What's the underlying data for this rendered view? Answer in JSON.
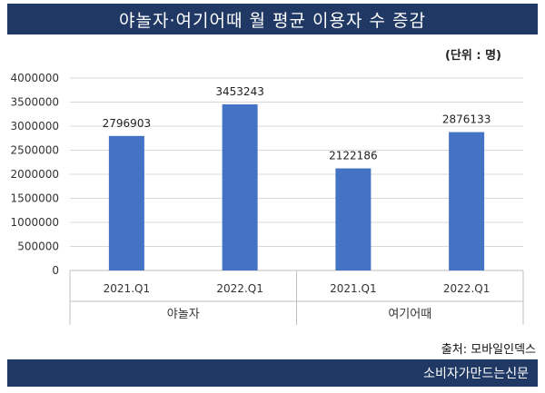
{
  "header": {
    "title": "야놀자·여기어때 월 평균 이용자 수 증감"
  },
  "unit_note": "(단위 : 명)",
  "source": "출처: 모바일인덱스",
  "footer": {
    "publisher": "소비자가만드는신문"
  },
  "colors": {
    "header_bg": "#1f3864",
    "bar": "#4472c4",
    "grid": "#d9d9d9"
  },
  "chart_data": {
    "type": "bar",
    "title": "야놀자·여기어때 월 평균 이용자 수 증감",
    "groups": [
      {
        "name": "야놀자",
        "categories": [
          "2021.Q1",
          "2022.Q1"
        ],
        "values": [
          2796903,
          3453243
        ]
      },
      {
        "name": "여기어때",
        "categories": [
          "2021.Q1",
          "2022.Q1"
        ],
        "values": [
          2122186,
          2876133
        ]
      }
    ],
    "ylim": [
      0,
      4000000
    ],
    "yticks": [
      0,
      500000,
      1000000,
      1500000,
      2000000,
      2500000,
      3000000,
      3500000,
      4000000
    ],
    "grid": true,
    "legend": "none"
  }
}
